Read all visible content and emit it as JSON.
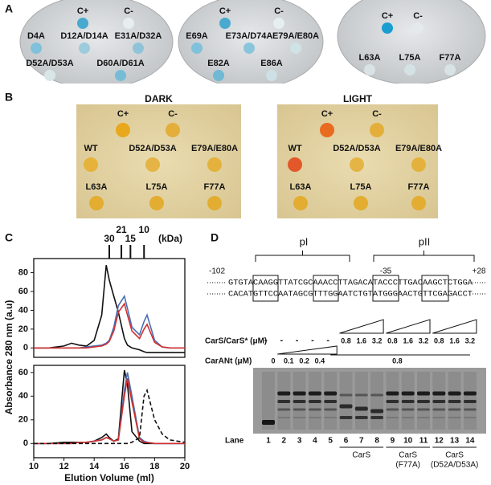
{
  "panel_labels": [
    "A",
    "B",
    "C",
    "D"
  ],
  "plates_a": [
    {
      "labels": [
        "C+",
        "C-",
        "D4A",
        "D12A/D14A",
        "E31A/D32A",
        "D52A/D53A",
        "D60A/D61A"
      ]
    },
    {
      "labels": [
        "C+",
        "C-",
        "E69A",
        "E73A/D74A",
        "E79A/E80A",
        "E82A",
        "E86A"
      ]
    },
    {
      "labels": [
        "C+",
        "C-",
        "L63A",
        "L75A",
        "F77A"
      ]
    }
  ],
  "plates_b": [
    {
      "title": "DARK",
      "labels": [
        "C+",
        "C-",
        "WT",
        "D52A/D53A",
        "E79A/E80A",
        "L63A",
        "L75A",
        "F77A"
      ]
    },
    {
      "title": "LIGHT",
      "labels": [
        "C+",
        "C-",
        "WT",
        "D52A/D53A",
        "E79A/E80A",
        "L63A",
        "L75A",
        "F77A"
      ]
    }
  ],
  "panel_c": {
    "ylabel": "Absorbance 280 nm (a.u)",
    "xlabel": "Elution Volume (ml)",
    "marker_unit": "(kDa)"
  },
  "chart_data": [
    {
      "type": "line",
      "x": [
        10,
        11,
        12,
        12.5,
        13,
        13.5,
        14,
        14.5,
        14.8,
        15,
        15.3,
        15.6,
        16,
        16.2,
        16.5,
        17,
        17.3,
        17.5,
        18,
        18.5,
        19,
        20
      ],
      "xlim": [
        10,
        20
      ],
      "ylim": [
        -10,
        95
      ],
      "yticks": [
        0,
        20,
        40,
        60,
        80
      ],
      "markers": [
        {
          "x": 15,
          "label": "30"
        },
        {
          "x": 15.8,
          "label": "21"
        },
        {
          "x": 16.4,
          "label": "15"
        },
        {
          "x": 17.3,
          "label": "10"
        }
      ],
      "series": [
        {
          "color": "#111111",
          "values": [
            0,
            0,
            2,
            5,
            3,
            2,
            8,
            35,
            88,
            72,
            55,
            38,
            10,
            3,
            0,
            -2,
            -4,
            -5,
            -5,
            -5,
            -5,
            -5
          ]
        },
        {
          "color": "#4a6fb5",
          "values": [
            0,
            0,
            0,
            0,
            0,
            1,
            2,
            3,
            5,
            8,
            22,
            45,
            55,
            42,
            22,
            14,
            28,
            35,
            8,
            1,
            0,
            0
          ]
        },
        {
          "color": "#d03030",
          "values": [
            0,
            0,
            0,
            0,
            0,
            0,
            1,
            2,
            4,
            7,
            18,
            38,
            47,
            35,
            18,
            10,
            20,
            25,
            6,
            1,
            0,
            0
          ]
        }
      ]
    },
    {
      "type": "line",
      "x": [
        10,
        11,
        12,
        12.5,
        13,
        13.5,
        14,
        14.5,
        14.8,
        15,
        15.3,
        15.6,
        16,
        16.2,
        16.5,
        17,
        17.3,
        17.5,
        18,
        18.5,
        19,
        20
      ],
      "xlim": [
        10,
        20
      ],
      "ylim": [
        -12,
        66
      ],
      "yticks": [
        0,
        20,
        40,
        60
      ],
      "xticks": [
        10,
        12,
        14,
        16,
        18,
        20
      ],
      "series": [
        {
          "color": "#111111",
          "values": [
            0,
            0,
            1,
            1,
            1,
            1,
            2,
            5,
            8,
            5,
            2,
            4,
            62,
            50,
            10,
            2,
            0,
            0,
            0,
            0,
            0,
            0
          ]
        },
        {
          "color": "#4a6fb5",
          "values": [
            0,
            0,
            0,
            0,
            1,
            1,
            2,
            3,
            5,
            4,
            2,
            3,
            45,
            60,
            40,
            5,
            2,
            1,
            0,
            0,
            0,
            0
          ]
        },
        {
          "color": "#d03030",
          "values": [
            0,
            0,
            0,
            0,
            1,
            1,
            2,
            3,
            5,
            4,
            2,
            3,
            40,
            55,
            35,
            4,
            1,
            1,
            0,
            0,
            0,
            0
          ]
        },
        {
          "color": "#111111",
          "dashed": true,
          "values": [
            0,
            0,
            0,
            0,
            0,
            0,
            0,
            0,
            0,
            0,
            0,
            0,
            0,
            0,
            1,
            5,
            40,
            45,
            20,
            8,
            3,
            1
          ]
        }
      ]
    }
  ],
  "panel_d": {
    "regions": [
      "pI",
      "pII"
    ],
    "positions": [
      "-102",
      "-35",
      "+28"
    ],
    "sequence": [
      "GTGTACAAGGTTATCGCAAACCTTAGACATACCCTTGACAAGCTCTGGA",
      "CACATGTTCCAATAGCGTTTGGAATCTGTATGGGAACTGTTCGAGACCT"
    ],
    "cars_label": "CarS/CarS* (μM)",
    "cars_dashes": [
      "-",
      "-",
      "-",
      "-",
      "-"
    ],
    "cars_ramp": [
      "0.8",
      "1.6",
      "3.2"
    ],
    "carant_label": "CarANt (μM)",
    "carant_values": [
      "0",
      "0.1",
      "0.2",
      "0.4"
    ],
    "carant_span": "0.8",
    "lane_label": "Lane",
    "lanes": [
      "1",
      "2",
      "3",
      "4",
      "5",
      "6",
      "7",
      "8",
      "9",
      "10",
      "11",
      "12",
      "13",
      "14"
    ],
    "groups": [
      [
        "CarS"
      ],
      [
        "CarS",
        "(F77A)"
      ],
      [
        "CarS",
        "(D52A/D53A)"
      ]
    ]
  }
}
